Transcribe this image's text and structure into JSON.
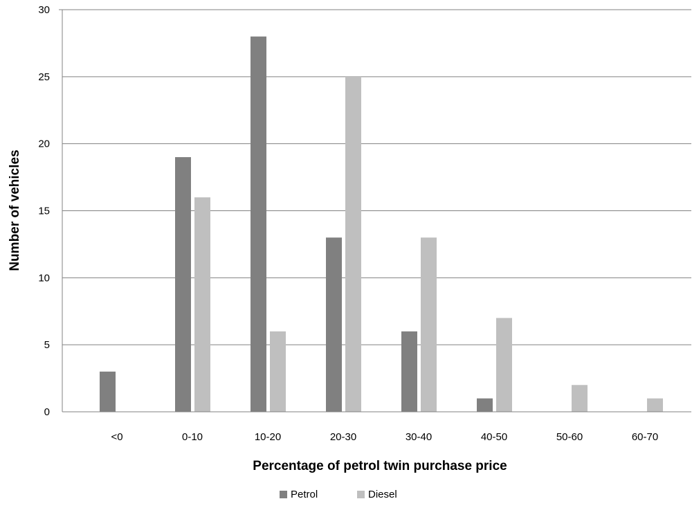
{
  "chart_data": {
    "type": "bar",
    "title": "",
    "xlabel": "Percentage of petrol twin purchase price",
    "ylabel": "Number of vehicles",
    "categories": [
      "<0",
      "0-10",
      "10-20",
      "20-30",
      "30-40",
      "40-50",
      "50-60",
      "60-70"
    ],
    "series": [
      {
        "name": "Petrol",
        "color": "#808080",
        "values": [
          3,
          19,
          28,
          13,
          6,
          1,
          0,
          0
        ]
      },
      {
        "name": "Diesel",
        "color": "#bfbfbf",
        "values": [
          0,
          16,
          6,
          25,
          13,
          7,
          2,
          1
        ]
      }
    ],
    "ylim": [
      0,
      30
    ],
    "yticks": [
      0,
      5,
      10,
      15,
      20,
      25,
      30
    ],
    "grid": true,
    "legend": "bottom"
  }
}
